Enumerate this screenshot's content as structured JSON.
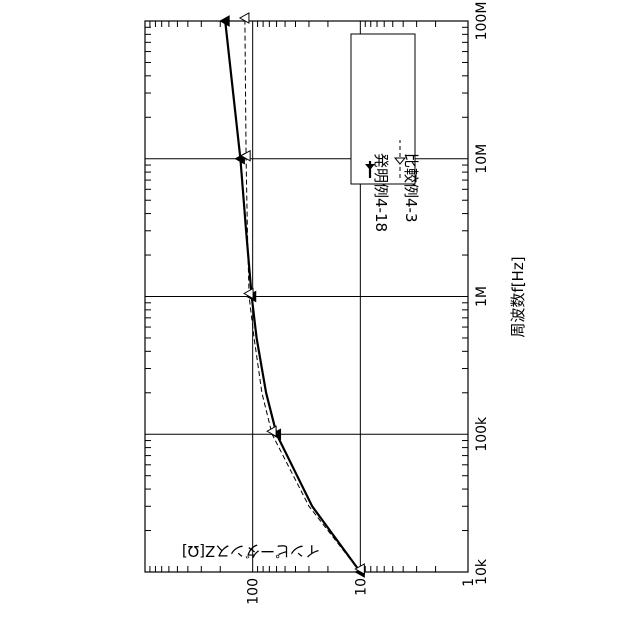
{
  "chart_data": {
    "type": "line",
    "orientation": "rotated-90-ccw",
    "xlabel": "周波数f[Hz]",
    "ylabel": "インピーダンスZ[Ω]",
    "xscale": "log",
    "yscale": "log",
    "xlim": [
      10000,
      100000000
    ],
    "ylim": [
      1,
      1000
    ],
    "x_tick_labels": [
      "10k",
      "100k",
      "1M",
      "10M",
      "100M"
    ],
    "y_tick_labels": [
      "1",
      "10",
      "100"
    ],
    "grid": true,
    "legend": {
      "position": "top-right",
      "entries": [
        {
          "label": "発明例4-18",
          "marker": "filled-triangle",
          "line": "solid"
        },
        {
          "label": "比較例4-3",
          "marker": "open-triangle",
          "line": "dashed"
        }
      ]
    },
    "series": [
      {
        "name": "発明例4-18",
        "style": "solid",
        "marker": "filled-triangle",
        "x": [
          10000,
          30000,
          100000,
          200000,
          500000,
          1000000,
          3000000,
          10000000,
          100000000
        ],
        "y": [
          10,
          28,
          60,
          75,
          92,
          102,
          115,
          130,
          180
        ]
      },
      {
        "name": "比較例4-3",
        "style": "dashed",
        "marker": "open-triangle",
        "x": [
          10000,
          30000,
          100000,
          200000,
          500000,
          1000000,
          3000000,
          10000000,
          100000000
        ],
        "y": [
          10,
          30,
          66,
          82,
          97,
          108,
          112,
          115,
          118
        ]
      }
    ],
    "marker_points": [
      10000,
      100000,
      1000000,
      10000000,
      100000000
    ]
  }
}
